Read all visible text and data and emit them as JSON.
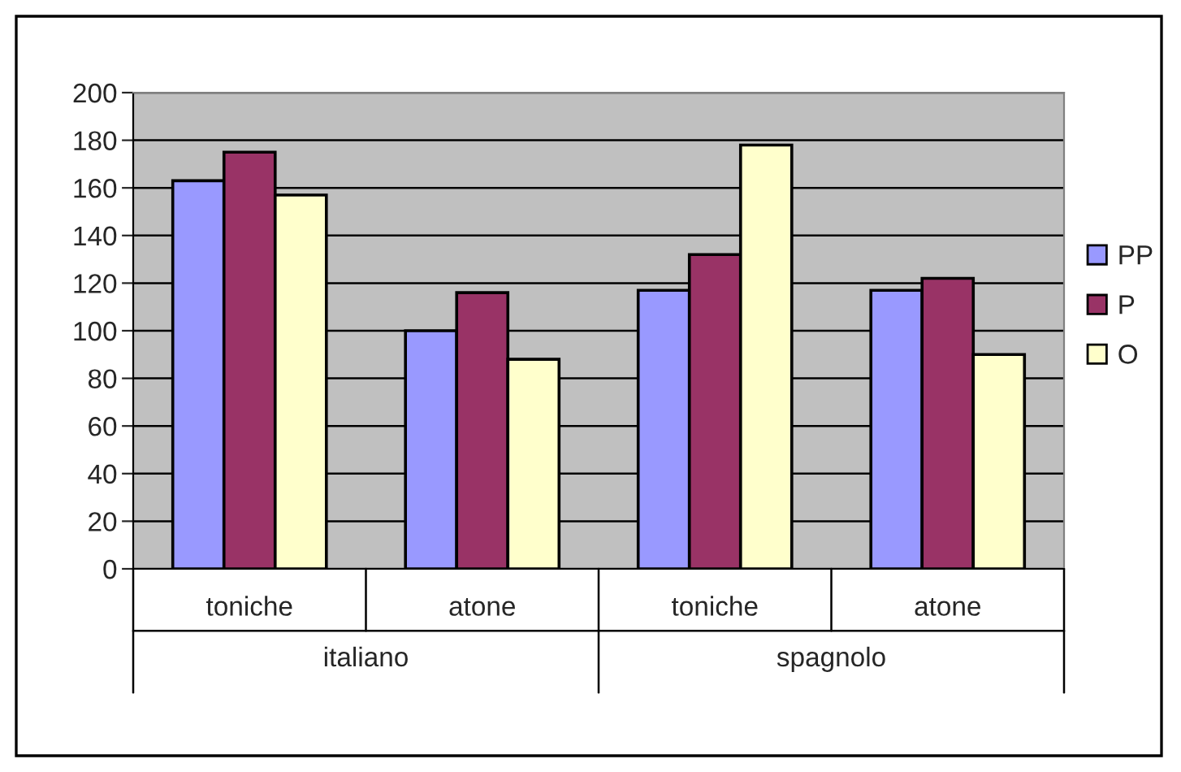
{
  "chart_data": {
    "type": "bar",
    "categories": [
      "toniche",
      "atone",
      "toniche",
      "atone"
    ],
    "annotations": [
      "italiano",
      "spagnolo"
    ],
    "series": [
      {
        "name": "PP",
        "color": "#9999ff",
        "values": [
          163,
          100,
          117,
          117
        ]
      },
      {
        "name": "P",
        "color": "#993366",
        "values": [
          175,
          116,
          132,
          122
        ]
      },
      {
        "name": "O",
        "color": "#ffffcc",
        "values": [
          157,
          88,
          178,
          90
        ]
      }
    ],
    "ylim": [
      0,
      200
    ],
    "yticks": [
      0,
      20,
      40,
      60,
      80,
      100,
      120,
      140,
      160,
      180,
      200
    ],
    "grid": "y",
    "legend": "right"
  }
}
